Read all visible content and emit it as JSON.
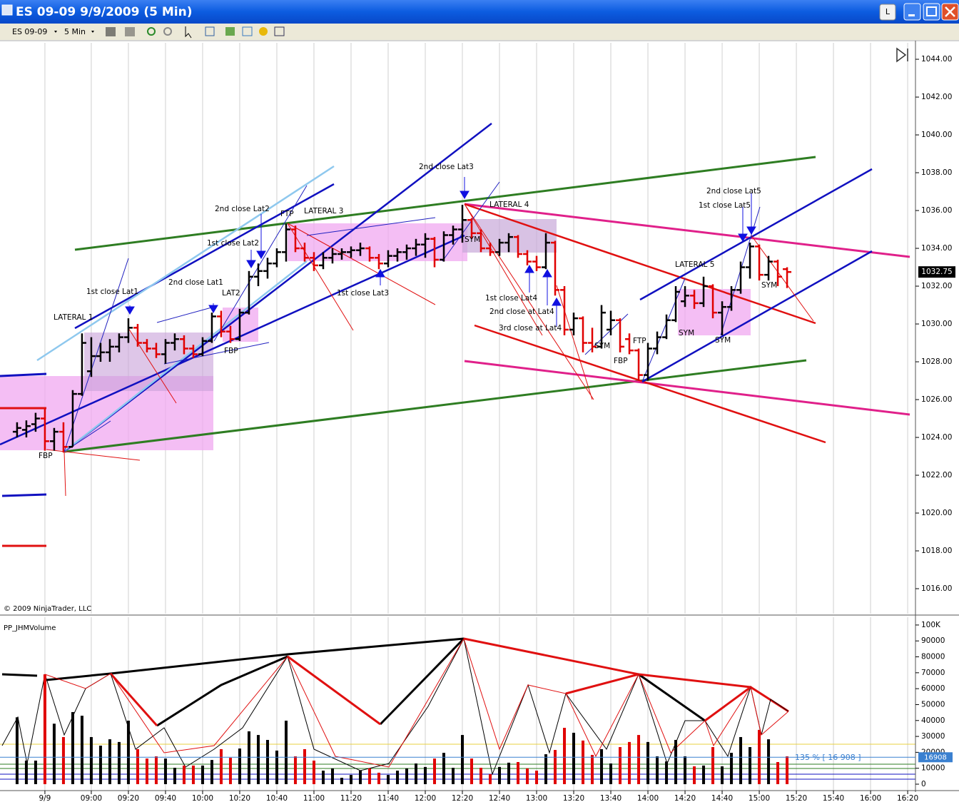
{
  "window": {
    "title": "ES 09-09  9/9/2009 (5 Min)",
    "buttons": [
      "L"
    ]
  },
  "toolbar": {
    "instrument": "ES 09-09",
    "interval": "5 Min"
  },
  "chart_data": [
    {
      "type": "ohlc",
      "copyright": "© 2009 NinjaTrader, LLC",
      "up_color": "#000000",
      "down_color": "#e00000",
      "grid": "x",
      "x": [
        500,
        505,
        510,
        515,
        520,
        525,
        530,
        535,
        540,
        545,
        550,
        555,
        560,
        565,
        570,
        575,
        580,
        585,
        590,
        595,
        600,
        605,
        610,
        615,
        620,
        625,
        630,
        635,
        640,
        645,
        650,
        655,
        660,
        665,
        670,
        675,
        680,
        685,
        690,
        695,
        700,
        705,
        710,
        715,
        720,
        725,
        730,
        735,
        740,
        745,
        750,
        755,
        760,
        765,
        770,
        775,
        780,
        785,
        790,
        795,
        800,
        805,
        810,
        815,
        820,
        825,
        830,
        835,
        840,
        845,
        850,
        855,
        860,
        865,
        870,
        875,
        880,
        885,
        890,
        895,
        900,
        905,
        910,
        915
      ],
      "open": [
        1024.3,
        1024.4,
        1024.7,
        1025.0,
        1023.8,
        1024.3,
        1023.5,
        1026.3,
        1027.5,
        1028.3,
        1028.5,
        1028.8,
        1029.3,
        1029.8,
        1029.0,
        1028.7,
        1028.4,
        1029.0,
        1029.2,
        1028.7,
        1028.4,
        1029.1,
        1030.4,
        1029.6,
        1029.2,
        1030.6,
        1032.5,
        1032.8,
        1033.2,
        1033.8,
        1035.0,
        1034.0,
        1033.5,
        1033.1,
        1033.5,
        1033.7,
        1033.8,
        1033.9,
        1034.0,
        1033.5,
        1033.2,
        1033.6,
        1033.8,
        1034.0,
        1034.2,
        1034.5,
        1033.4,
        1034.7,
        1035.0,
        1035.5,
        1034.8,
        1034.0,
        1033.8,
        1034.3,
        1034.6,
        1033.7,
        1033.3,
        1033.0,
        1034.3,
        1031.8,
        1029.7,
        1030.3,
        1029.0,
        1028.8,
        1029.7,
        1030.2,
        1029.2,
        1028.6,
        1027.3,
        1028.7,
        1029.3,
        1030.2,
        1031.2,
        1031.5,
        1031.1,
        1032.0,
        1030.6,
        1030.9,
        1031.8,
        1033.0,
        1034.1,
        1032.6,
        1033.3,
        1032.9
      ],
      "high": [
        1024.8,
        1024.9,
        1025.3,
        1025.5,
        1024.5,
        1024.8,
        1026.5,
        1029.5,
        1029.3,
        1029.0,
        1029.2,
        1029.5,
        1030.3,
        1030.0,
        1029.2,
        1029.0,
        1029.2,
        1029.5,
        1029.4,
        1028.9,
        1029.3,
        1030.6,
        1030.7,
        1029.9,
        1030.8,
        1032.8,
        1033.2,
        1033.5,
        1034.0,
        1035.3,
        1035.2,
        1034.3,
        1033.8,
        1033.8,
        1034.0,
        1034.0,
        1034.1,
        1034.3,
        1034.1,
        1033.7,
        1033.9,
        1034.0,
        1034.2,
        1034.5,
        1034.8,
        1034.6,
        1034.9,
        1035.2,
        1036.3,
        1035.6,
        1035.0,
        1034.3,
        1034.5,
        1034.8,
        1034.7,
        1033.9,
        1033.6,
        1034.8,
        1034.4,
        1032.0,
        1030.6,
        1030.4,
        1029.8,
        1031.0,
        1030.7,
        1030.3,
        1029.5,
        1028.7,
        1029.0,
        1029.6,
        1030.5,
        1032.0,
        1032.0,
        1031.8,
        1032.5,
        1032.1,
        1031.2,
        1032.0,
        1033.3,
        1034.3,
        1034.2,
        1033.6,
        1033.4,
        1033.0
      ],
      "low": [
        1024.0,
        1024.0,
        1024.3,
        1023.3,
        1023.3,
        1023.2,
        1023.5,
        1026.2,
        1027.2,
        1028.0,
        1028.0,
        1028.5,
        1029.0,
        1028.8,
        1028.5,
        1028.2,
        1027.9,
        1028.6,
        1028.4,
        1028.2,
        1028.3,
        1029.0,
        1029.3,
        1029.0,
        1029.1,
        1030.5,
        1032.0,
        1032.4,
        1033.0,
        1033.3,
        1033.8,
        1033.3,
        1032.8,
        1032.9,
        1033.2,
        1033.4,
        1033.5,
        1033.6,
        1033.3,
        1032.9,
        1033.0,
        1033.3,
        1033.4,
        1033.6,
        1033.5,
        1033.0,
        1033.3,
        1034.2,
        1034.3,
        1034.5,
        1033.8,
        1033.6,
        1033.6,
        1033.8,
        1033.5,
        1033.1,
        1032.8,
        1032.9,
        1031.5,
        1029.4,
        1029.4,
        1028.5,
        1028.5,
        1028.7,
        1029.4,
        1028.5,
        1028.4,
        1027.0,
        1027.0,
        1028.4,
        1029.2,
        1030.1,
        1030.9,
        1030.8,
        1030.9,
        1030.3,
        1029.4,
        1030.7,
        1031.6,
        1032.4,
        1032.3,
        1032.3,
        1032.0,
        1031.9
      ],
      "close": [
        1024.5,
        1024.6,
        1025.0,
        1023.8,
        1024.3,
        1023.5,
        1026.3,
        1029.0,
        1028.3,
        1028.5,
        1028.8,
        1029.3,
        1029.8,
        1029.0,
        1028.7,
        1028.4,
        1029.0,
        1029.2,
        1028.7,
        1028.4,
        1029.1,
        1030.4,
        1029.6,
        1029.2,
        1030.6,
        1032.5,
        1032.8,
        1033.2,
        1033.8,
        1035.0,
        1034.0,
        1033.5,
        1033.1,
        1033.5,
        1033.7,
        1033.8,
        1033.9,
        1034.0,
        1033.5,
        1033.2,
        1033.6,
        1033.8,
        1034.0,
        1034.2,
        1034.5,
        1033.4,
        1034.7,
        1035.0,
        1035.5,
        1034.8,
        1034.0,
        1033.8,
        1034.3,
        1034.6,
        1033.7,
        1033.3,
        1033.0,
        1034.3,
        1031.8,
        1029.7,
        1030.3,
        1029.0,
        1028.8,
        1030.6,
        1030.2,
        1028.8,
        1028.6,
        1027.3,
        1028.7,
        1029.3,
        1030.2,
        1031.7,
        1031.5,
        1031.1,
        1032.0,
        1030.6,
        1030.9,
        1031.8,
        1033.0,
        1034.1,
        1032.6,
        1033.3,
        1032.5,
        1032.75
      ],
      "last_price": 1032.75,
      "xlim": [
        490.8,
        984.2
      ],
      "xticks": [
        {
          "value": 515,
          "label": "9/9"
        },
        {
          "value": 540,
          "label": "09:00"
        },
        {
          "value": 560,
          "label": "09:20"
        },
        {
          "value": 580,
          "label": "09:40"
        },
        {
          "value": 600,
          "label": "10:00"
        },
        {
          "value": 620,
          "label": "10:20"
        },
        {
          "value": 640,
          "label": "10:40"
        },
        {
          "value": 660,
          "label": "11:00"
        },
        {
          "value": 680,
          "label": "11:20"
        },
        {
          "value": 700,
          "label": "11:40"
        },
        {
          "value": 720,
          "label": "12:00"
        },
        {
          "value": 740,
          "label": "12:20"
        },
        {
          "value": 760,
          "label": "12:40"
        },
        {
          "value": 780,
          "label": "13:00"
        },
        {
          "value": 800,
          "label": "13:20"
        },
        {
          "value": 820,
          "label": "13:40"
        },
        {
          "value": 840,
          "label": "14:00"
        },
        {
          "value": 860,
          "label": "14:20"
        },
        {
          "value": 880,
          "label": "14:40"
        },
        {
          "value": 900,
          "label": "15:00"
        },
        {
          "value": 920,
          "label": "15:20"
        },
        {
          "value": 940,
          "label": "15:40"
        },
        {
          "value": 960,
          "label": "16:00"
        },
        {
          "value": 980,
          "label": "16:20"
        }
      ],
      "ylim": [
        1014.68,
        1044.87
      ],
      "yticks": [
        {
          "value": 1016,
          "label": "1016.00"
        },
        {
          "value": 1018,
          "label": "1018.00"
        },
        {
          "value": 1020,
          "label": "1020.00"
        },
        {
          "value": 1022,
          "label": "1022.00"
        },
        {
          "value": 1024,
          "label": "1024.00"
        },
        {
          "value": 1026,
          "label": "1026.00"
        },
        {
          "value": 1028,
          "label": "1028.00"
        },
        {
          "value": 1030,
          "label": "1030.00"
        },
        {
          "value": 1032,
          "label": "1032.00"
        },
        {
          "value": 1034,
          "label": "1034.00"
        },
        {
          "value": 1036,
          "label": "1036.00"
        },
        {
          "value": 1038,
          "label": "1038.00"
        },
        {
          "value": 1040,
          "label": "1040.00"
        },
        {
          "value": 1042,
          "label": "1042.00"
        },
        {
          "value": 1044,
          "label": "1044.00"
        }
      ],
      "annotations": [
        "LATERAL 1",
        "1st close Lat1",
        "2nd close Lat1",
        "FBP",
        "LAT2",
        "FBP",
        "1st close Lat2",
        "2nd close Lat2",
        "FTP",
        "LATERAL 3",
        "1st close Lat3",
        "2nd close Lat3",
        "SYM",
        "LATERAL 4",
        "1st close Lat4",
        "2nd close at Lat4",
        "3rd close at Lat4",
        "SYM",
        "FBP",
        "FTP",
        "LATERAL 5",
        "SYM",
        "SYM",
        "2nd close Lat5",
        "1st close Lat5",
        "SYM"
      ]
    },
    {
      "type": "bar",
      "title": "PP_JHMVolume",
      "values": [
        42000,
        14800,
        14800,
        69000,
        38000,
        29600,
        45300,
        43000,
        29600,
        24200,
        28200,
        26500,
        39900,
        22000,
        16100,
        17500,
        16100,
        10300,
        11700,
        11700,
        11700,
        15200,
        22000,
        16600,
        22400,
        33200,
        30900,
        27800,
        21100,
        39900,
        17500,
        22000,
        14800,
        8500,
        9900,
        4000,
        5800,
        8500,
        9900,
        7200,
        5800,
        8500,
        9900,
        13000,
        10800,
        16100,
        19700,
        10300,
        30900,
        16100,
        10300,
        6300,
        10800,
        13500,
        13900,
        9900,
        8500,
        18800,
        21500,
        35400,
        32300,
        27400,
        18400,
        22000,
        13000,
        23300,
        26500,
        30900,
        26500,
        17500,
        14300,
        27800,
        17500,
        11200,
        11700,
        23300,
        11200,
        19700,
        29600,
        23300,
        34100,
        28200,
        13900,
        17500
      ],
      "last_volume": 16908,
      "ratio_label": "135 % [ 16 908 ]",
      "ylim": [
        -4036,
        104900
      ],
      "yticks": [
        0,
        10000,
        20000,
        30000,
        40000,
        50000,
        60000,
        70000,
        80000,
        90000,
        {
          "value": 100000,
          "label": "100K"
        }
      ]
    }
  ]
}
